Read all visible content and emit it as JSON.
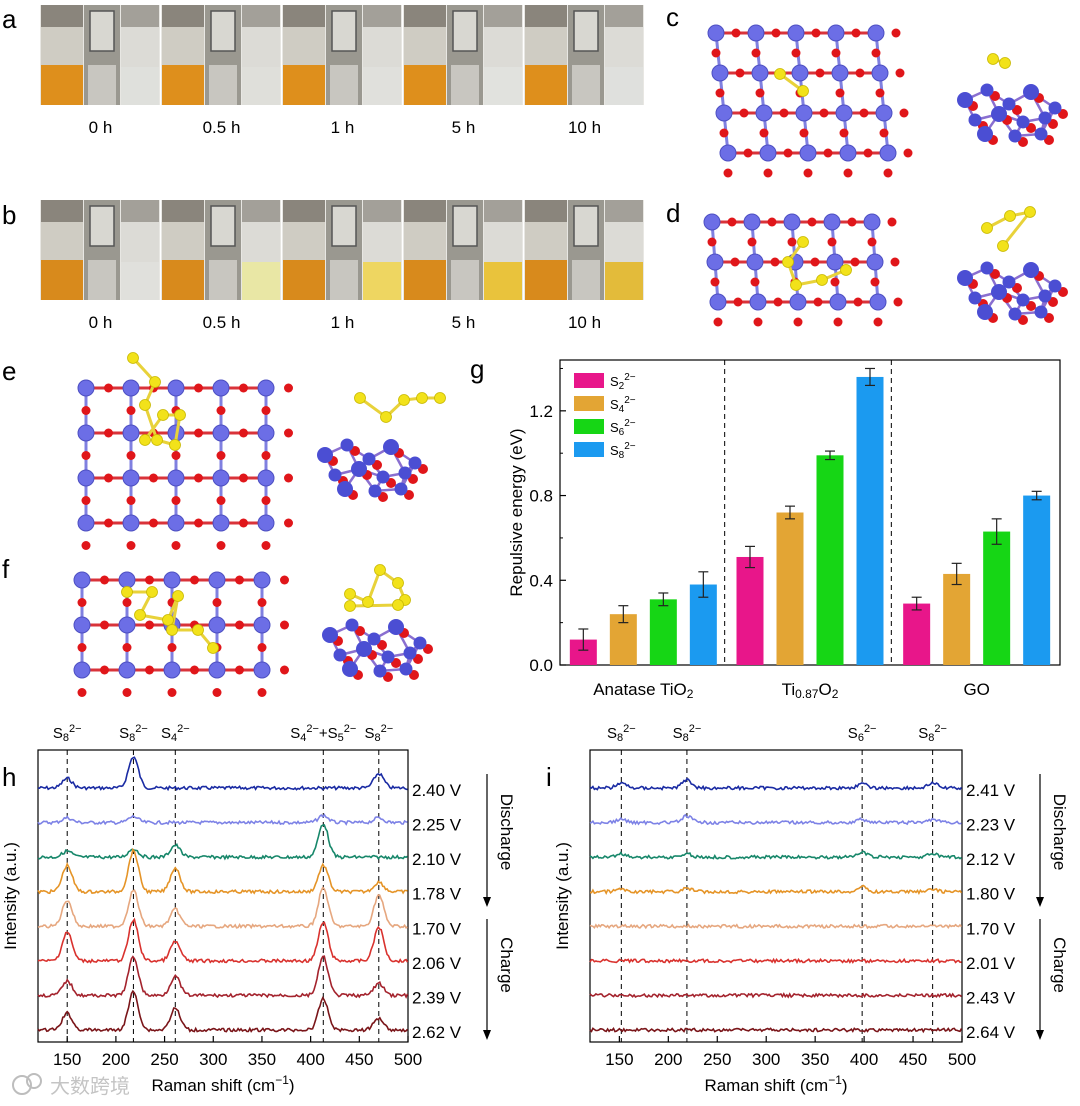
{
  "panels": {
    "a": {
      "letter": "a",
      "times": [
        "0 h",
        "0.5 h",
        "1 h",
        "5 h",
        "10 h"
      ],
      "right_vial_tint": [
        "#dfe0dc",
        "#dfdfda",
        "#e0e0dc",
        "#e1e2de",
        "#dfe0dd"
      ]
    },
    "b": {
      "letter": "b",
      "times": [
        "0 h",
        "0.5 h",
        "1 h",
        "5 h",
        "10 h"
      ],
      "right_vial_tint": [
        "#e0e0dc",
        "#e9e7a5",
        "#eed661",
        "#e9c33c",
        "#e3bb3a"
      ]
    },
    "c": {
      "letter": "c"
    },
    "d": {
      "letter": "d"
    },
    "e": {
      "letter": "e"
    },
    "f": {
      "letter": "f"
    },
    "g": {
      "letter": "g"
    },
    "h": {
      "letter": "h"
    },
    "i": {
      "letter": "i"
    }
  },
  "colors": {
    "ti_atom": "#6c6ee6",
    "o_atom": "#e0161a",
    "s_atom": "#f2e21a",
    "bond_s": "#e8d23a"
  },
  "chart_data": [
    {
      "panel": "g",
      "type": "bar",
      "categories": [
        "Anatase TiO2",
        "Ti0.87O2",
        "GO"
      ],
      "categories_display": [
        {
          "main": "Anatase TiO",
          "sub": "2",
          "rest": ""
        },
        {
          "main": "Ti",
          "sub": "0.87",
          "rest": "O",
          "sub2": "2"
        },
        {
          "main": "GO",
          "sub": "",
          "rest": ""
        }
      ],
      "series": [
        {
          "name": "S2 2−",
          "label_main": "S",
          "label_sub": "2",
          "label_sup": "2−",
          "color": "#e8168a",
          "values": [
            0.12,
            0.51,
            0.29
          ],
          "errors": [
            0.05,
            0.05,
            0.03
          ]
        },
        {
          "name": "S4 2−",
          "label_main": "S",
          "label_sub": "4",
          "label_sup": "2−",
          "color": "#e3a534",
          "values": [
            0.24,
            0.72,
            0.43
          ],
          "errors": [
            0.04,
            0.03,
            0.05
          ]
        },
        {
          "name": "S6 2−",
          "label_main": "S",
          "label_sub": "6",
          "label_sup": "2−",
          "color": "#16d615",
          "values": [
            0.31,
            0.99,
            0.63
          ],
          "errors": [
            0.03,
            0.02,
            0.06
          ]
        },
        {
          "name": "S8 2−",
          "label_main": "S",
          "label_sub": "8",
          "label_sup": "2−",
          "color": "#1b9af0",
          "values": [
            0.38,
            1.36,
            0.8
          ],
          "errors": [
            0.06,
            0.04,
            0.02
          ]
        }
      ],
      "ylabel": "Repulsive energy (eV)",
      "ylim": [
        0,
        1.44
      ],
      "yticks": [
        0.0,
        0.4,
        0.8,
        1.2
      ],
      "ytick_labels": [
        "0.0",
        "0.4",
        "0.8",
        "1.2"
      ],
      "legend_position": "top-left",
      "separators_between_groups": true
    },
    {
      "panel": "h",
      "type": "line",
      "xlabel": "Raman shift (cm",
      "xlabel_sup": "−1",
      "xlabel_close": ")",
      "ylabel": "Intensity (a.u.)",
      "xlim": [
        120,
        500
      ],
      "xticks": [
        150,
        200,
        250,
        300,
        350,
        400,
        450,
        500
      ],
      "peak_lines": [
        150,
        218,
        261,
        413,
        470
      ],
      "peak_labels": [
        {
          "x": 150,
          "main": "S",
          "sub": "8",
          "sup": "2−",
          "tail": ""
        },
        {
          "x": 218,
          "main": "S",
          "sub": "8",
          "sup": "2−",
          "tail": ""
        },
        {
          "x": 261,
          "main": "S",
          "sub": "4",
          "sup": "2−",
          "tail": ""
        },
        {
          "x": 413,
          "main": "S",
          "sub": "4",
          "sup": "2−",
          "tail": "+S",
          "tail_sub": "5",
          "tail_sup": "2−"
        },
        {
          "x": 470,
          "main": "S",
          "sub": "8",
          "sup": "2−",
          "tail": ""
        }
      ],
      "discharge_label": "Discharge",
      "charge_label": "Charge",
      "series": [
        {
          "name": "2.40 V",
          "color": "#1a2ba3",
          "peaks": [
            [
              150,
              0.4
            ],
            [
              218,
              1.3
            ],
            [
              470,
              0.6
            ]
          ]
        },
        {
          "name": "2.25 V",
          "color": "#7d82e6",
          "peaks": [
            [
              150,
              0.2
            ],
            [
              218,
              0.25
            ],
            [
              413,
              0.3
            ],
            [
              470,
              0.2
            ]
          ]
        },
        {
          "name": "2.10 V",
          "color": "#17876a",
          "peaks": [
            [
              150,
              0.25
            ],
            [
              218,
              0.35
            ],
            [
              261,
              0.5
            ],
            [
              413,
              1.4
            ]
          ]
        },
        {
          "name": "1.78 V",
          "color": "#e59427",
          "peaks": [
            [
              150,
              1.1
            ],
            [
              218,
              1.7
            ],
            [
              261,
              1.0
            ],
            [
              413,
              1.1
            ],
            [
              470,
              0.4
            ]
          ]
        },
        {
          "name": "1.70 V",
          "color": "#e6a77f",
          "peaks": [
            [
              150,
              1.1
            ],
            [
              218,
              1.5
            ],
            [
              261,
              0.7
            ],
            [
              413,
              1.6
            ],
            [
              470,
              1.3
            ]
          ]
        },
        {
          "name": "2.06 V",
          "color": "#d9322e",
          "peaks": [
            [
              150,
              1.2
            ],
            [
              218,
              1.7
            ],
            [
              261,
              0.8
            ],
            [
              413,
              1.6
            ],
            [
              470,
              1.4
            ]
          ]
        },
        {
          "name": "2.39 V",
          "color": "#a4232d",
          "peaks": [
            [
              150,
              0.6
            ],
            [
              218,
              1.6
            ],
            [
              261,
              0.8
            ],
            [
              413,
              1.6
            ],
            [
              470,
              0.5
            ]
          ]
        },
        {
          "name": "2.62 V",
          "color": "#7a1519",
          "peaks": [
            [
              150,
              0.7
            ],
            [
              218,
              1.6
            ],
            [
              261,
              0.9
            ],
            [
              413,
              1.3
            ],
            [
              470,
              0.5
            ]
          ]
        }
      ]
    },
    {
      "panel": "i",
      "type": "line",
      "xlabel": "Raman shift (cm",
      "xlabel_sup": "−1",
      "xlabel_close": ")",
      "ylabel": "Intensity (a.u.)",
      "xlim": [
        120,
        500
      ],
      "xticks": [
        150,
        200,
        250,
        300,
        350,
        400,
        450,
        500
      ],
      "peak_lines": [
        152,
        219,
        398,
        470
      ],
      "peak_labels": [
        {
          "x": 152,
          "main": "S",
          "sub": "8",
          "sup": "2−",
          "tail": ""
        },
        {
          "x": 219,
          "main": "S",
          "sub": "8",
          "sup": "2−",
          "tail": ""
        },
        {
          "x": 398,
          "main": "S",
          "sub": "6",
          "sup": "2−",
          "tail": ""
        },
        {
          "x": 470,
          "main": "S",
          "sub": "8",
          "sup": "2−",
          "tail": ""
        }
      ],
      "discharge_label": "Discharge",
      "charge_label": "Charge",
      "series": [
        {
          "name": "2.41 V",
          "color": "#1a2ba3",
          "peaks": [
            [
              152,
              0.3
            ],
            [
              219,
              0.5
            ],
            [
              398,
              0.25
            ],
            [
              470,
              0.3
            ]
          ]
        },
        {
          "name": "2.23 V",
          "color": "#7d82e6",
          "peaks": [
            [
              152,
              0.2
            ],
            [
              219,
              0.4
            ],
            [
              398,
              0.2
            ],
            [
              470,
              0.2
            ]
          ]
        },
        {
          "name": "2.12 V",
          "color": "#17876a",
          "peaks": [
            [
              152,
              0.2
            ],
            [
              219,
              0.2
            ],
            [
              398,
              0.3
            ],
            [
              470,
              0.2
            ]
          ]
        },
        {
          "name": "1.80 V",
          "color": "#e59427",
          "peaks": [
            [
              152,
              0.15
            ],
            [
              219,
              0.2
            ],
            [
              398,
              0.3
            ],
            [
              470,
              0.15
            ]
          ]
        },
        {
          "name": "1.70 V",
          "color": "#e6a77f",
          "peaks": []
        },
        {
          "name": "2.01 V",
          "color": "#d9322e",
          "peaks": []
        },
        {
          "name": "2.43 V",
          "color": "#a4232d",
          "peaks": []
        },
        {
          "name": "2.64 V",
          "color": "#7a1519",
          "peaks": []
        }
      ]
    }
  ],
  "watermark": {
    "text": "大数跨境"
  }
}
